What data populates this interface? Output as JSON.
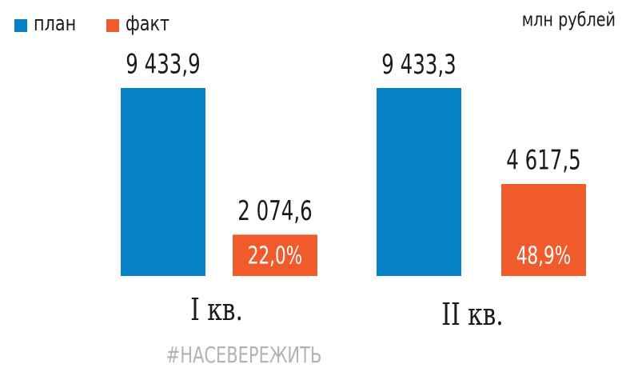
{
  "chart_data": {
    "type": "bar",
    "unit": "млн  рублей",
    "categories": [
      "I кв.",
      "II кв."
    ],
    "series": [
      {
        "name": "план",
        "color": "#0680c6",
        "values": [
          9433.9,
          9433.3
        ],
        "value_labels": [
          "9 433,9",
          "9 433,3"
        ]
      },
      {
        "name": "факт",
        "color": "#f15a2b",
        "values": [
          2074.6,
          4617.5
        ],
        "value_labels": [
          "2 074,6",
          "4 617,5"
        ],
        "percent_labels": [
          "22,0%",
          "48,9%"
        ]
      }
    ],
    "footer": "#НАСЕВЕРЕЖИТЬ"
  }
}
